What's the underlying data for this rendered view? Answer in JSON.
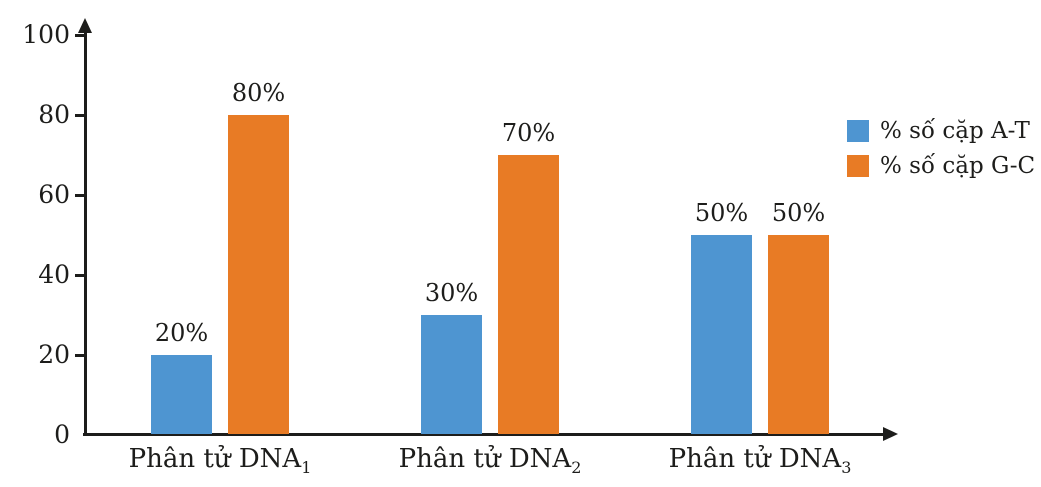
{
  "chart_data": {
    "type": "bar",
    "title": "",
    "xlabel": "",
    "ylabel": "",
    "categories": [
      {
        "text": "Phân tử DNA",
        "sub": "1"
      },
      {
        "text": "Phân tử DNA",
        "sub": "2"
      },
      {
        "text": "Phân tử DNA",
        "sub": "3"
      }
    ],
    "series": [
      {
        "name": "% số cặp A-T",
        "color": "#4E95D1",
        "values": [
          20,
          30,
          50
        ]
      },
      {
        "name": "% số cặp G-C",
        "color": "#E87B25",
        "values": [
          80,
          70,
          50
        ]
      }
    ],
    "value_labels": [
      [
        "20%",
        "80%"
      ],
      [
        "30%",
        "70%"
      ],
      [
        "50%",
        "50%"
      ]
    ],
    "yticks": [
      "0",
      "20",
      "40",
      "60",
      "80",
      "100"
    ],
    "ylim": [
      0,
      100
    ],
    "grid": false,
    "legend_position": "right",
    "axis_color": "#1d1d1b"
  }
}
